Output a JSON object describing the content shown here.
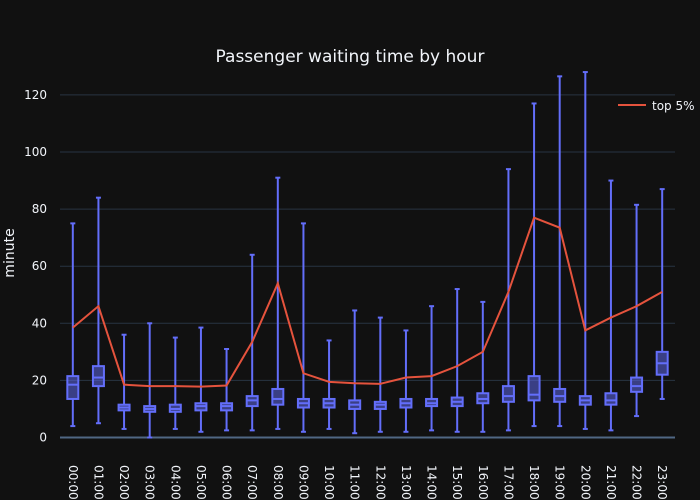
{
  "chart_data": {
    "type": "box",
    "title": "Passenger waiting time by hour",
    "xlabel": "",
    "ylabel": "minute",
    "ylim": [
      -2,
      130
    ],
    "yticks": [
      0,
      20,
      40,
      60,
      80,
      100,
      120
    ],
    "grid": true,
    "legend": "top-right",
    "categories": [
      "00:00",
      "01:00",
      "02:00",
      "03:00",
      "04:00",
      "05:00",
      "06:00",
      "07:00",
      "08:00",
      "09:00",
      "10:00",
      "11:00",
      "12:00",
      "13:00",
      "14:00",
      "15:00",
      "16:00",
      "17:00",
      "18:00",
      "19:00",
      "20:00",
      "21:00",
      "22:00",
      "23:00"
    ],
    "boxes": [
      {
        "min": 4,
        "q1": 13.5,
        "median": 18.5,
        "q3": 21.5,
        "max": 75
      },
      {
        "min": 5,
        "q1": 18,
        "median": 21,
        "q3": 25,
        "max": 84
      },
      {
        "min": 3,
        "q1": 9.5,
        "median": 10.5,
        "q3": 11.5,
        "max": 36
      },
      {
        "min": 0,
        "q1": 9,
        "median": 10,
        "q3": 11,
        "max": 40
      },
      {
        "min": 3,
        "q1": 9,
        "median": 10,
        "q3": 11.5,
        "max": 35
      },
      {
        "min": 2,
        "q1": 9.5,
        "median": 11,
        "q3": 12,
        "max": 38.5
      },
      {
        "min": 2.5,
        "q1": 9.5,
        "median": 11,
        "q3": 12,
        "max": 31
      },
      {
        "min": 2.5,
        "q1": 11,
        "median": 13,
        "q3": 14.5,
        "max": 64
      },
      {
        "min": 3,
        "q1": 11.5,
        "median": 13.5,
        "q3": 17,
        "max": 91
      },
      {
        "min": 2,
        "q1": 10.5,
        "median": 12,
        "q3": 13.5,
        "max": 75
      },
      {
        "min": 3,
        "q1": 10.5,
        "median": 12,
        "q3": 13.5,
        "max": 34
      },
      {
        "min": 1.5,
        "q1": 10,
        "median": 11.5,
        "q3": 13,
        "max": 44.5
      },
      {
        "min": 2,
        "q1": 10,
        "median": 11.5,
        "q3": 12.5,
        "max": 42
      },
      {
        "min": 2,
        "q1": 10.5,
        "median": 12,
        "q3": 13.5,
        "max": 37.5
      },
      {
        "min": 2.5,
        "q1": 11,
        "median": 12,
        "q3": 13.5,
        "max": 46
      },
      {
        "min": 2,
        "q1": 11,
        "median": 12.5,
        "q3": 14,
        "max": 52
      },
      {
        "min": 2,
        "q1": 12,
        "median": 13.5,
        "q3": 15.5,
        "max": 47.5
      },
      {
        "min": 2.5,
        "q1": 12.5,
        "median": 14.5,
        "q3": 18,
        "max": 94
      },
      {
        "min": 4,
        "q1": 13,
        "median": 15,
        "q3": 21.5,
        "max": 117
      },
      {
        "min": 4,
        "q1": 12.5,
        "median": 14.5,
        "q3": 17,
        "max": 126.5
      },
      {
        "min": 3,
        "q1": 11.5,
        "median": 13,
        "q3": 14.5,
        "max": 128
      },
      {
        "min": 2.5,
        "q1": 11.5,
        "median": 13,
        "q3": 15.5,
        "max": 90
      },
      {
        "min": 7.5,
        "q1": 16,
        "median": 18,
        "q3": 21,
        "max": 81.5
      },
      {
        "min": 13.5,
        "q1": 22,
        "median": 26,
        "q3": 30,
        "max": 87
      }
    ],
    "series": [
      {
        "name": "top 5%",
        "type": "line",
        "values": [
          38.5,
          46,
          18.5,
          18,
          18,
          17.8,
          18.2,
          33.5,
          54,
          22.5,
          19.5,
          19,
          18.8,
          21,
          21.5,
          25,
          30,
          51,
          77,
          73.5,
          37.5,
          42,
          46,
          51
        ],
        "color": "#e5533d"
      }
    ],
    "colors": {
      "box": "#636efa",
      "line": "#e5533d",
      "background": "#111111",
      "grid": "#283442",
      "text": "#f2f5fa"
    }
  }
}
